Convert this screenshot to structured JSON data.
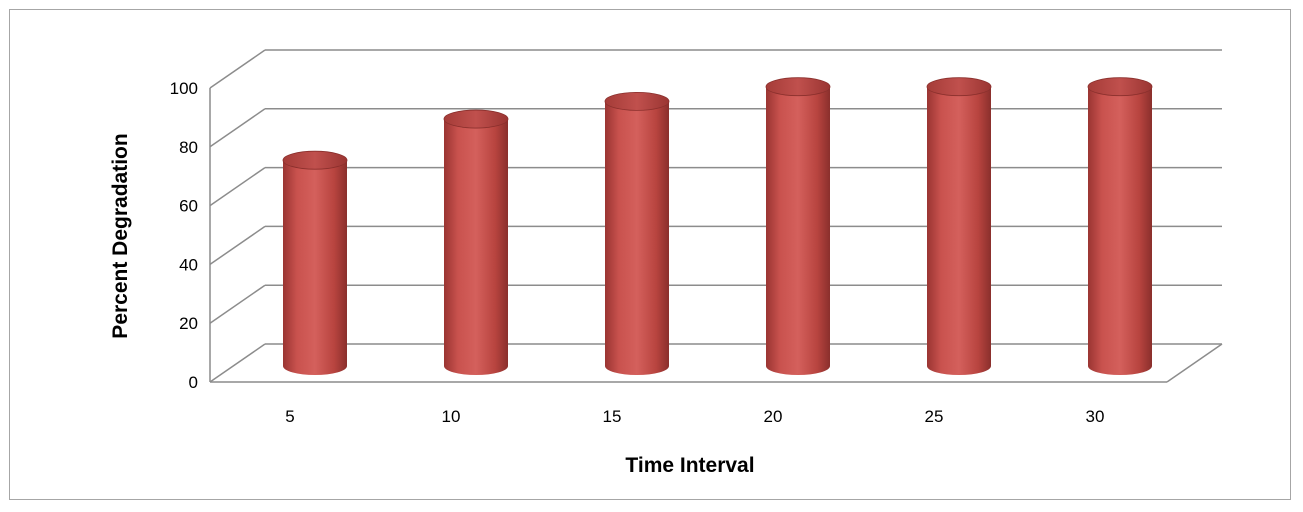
{
  "chart_data": {
    "type": "bar",
    "categories": [
      "5",
      "10",
      "15",
      "20",
      "25",
      "30"
    ],
    "values": [
      70,
      84,
      90,
      95,
      95,
      95
    ],
    "title": "",
    "xlabel": "Time Interval",
    "ylabel": "Percent Degradation",
    "ylim": [
      0,
      100
    ],
    "yticks": [
      "0",
      "20",
      "40",
      "60",
      "80",
      "100"
    ],
    "grid": true,
    "legend": "none",
    "style": "3d-cylinder",
    "bar_color": "#c0504d"
  }
}
